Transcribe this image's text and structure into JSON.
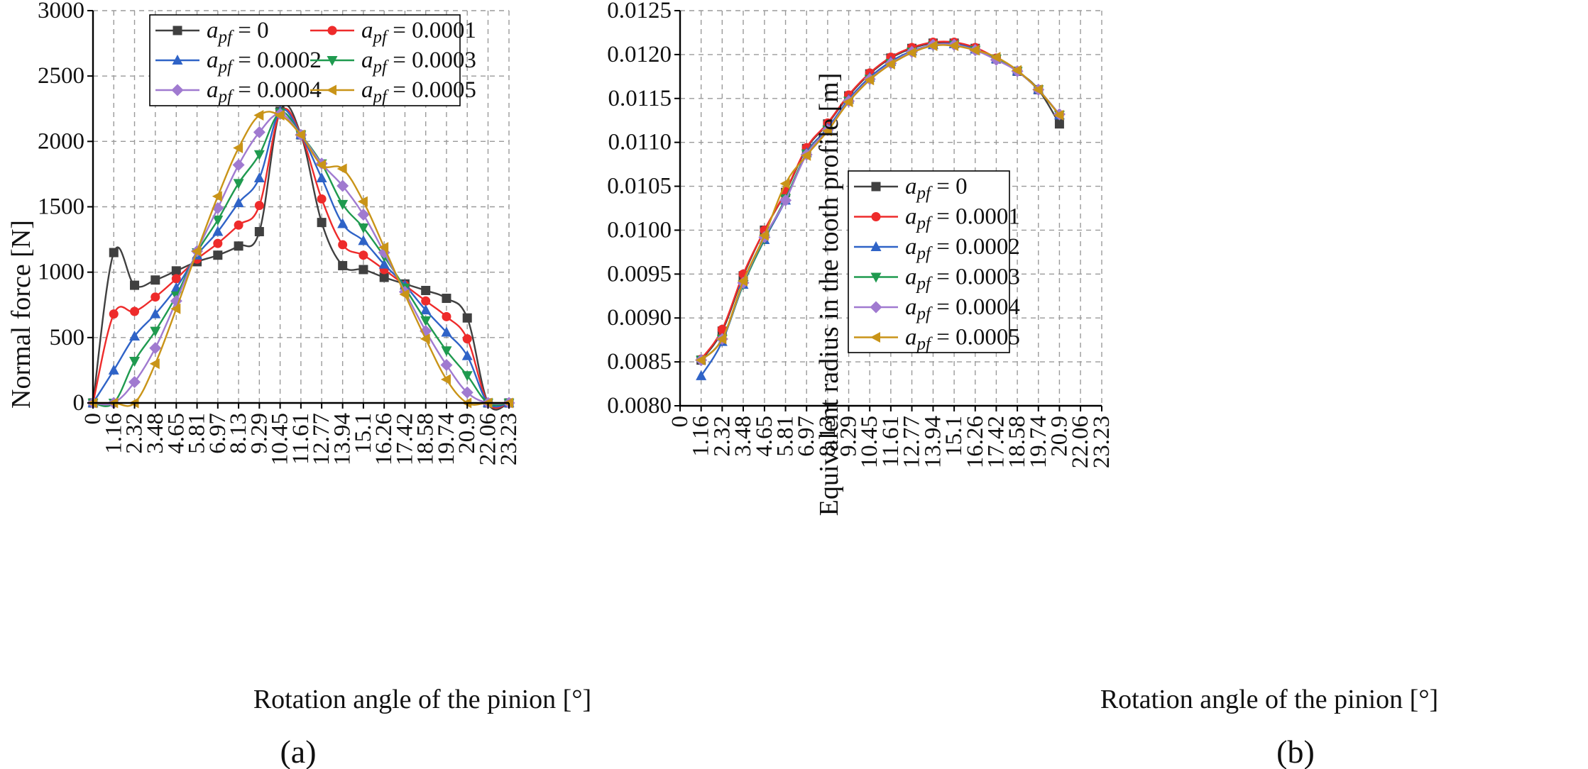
{
  "colors": {
    "apf_0": "#404040",
    "apf_0001": "#ee2b2b",
    "apf_0002": "#2f63c7",
    "apf_0003": "#1f9a4f",
    "apf_0004": "#a07ad0",
    "apf_0005": "#c99418"
  },
  "chart_data": [
    {
      "type": "line",
      "panel_label": "(a)",
      "xlabel": "Rotation angle of the pinion [°]",
      "ylabel": "Normal force [N]",
      "xlim": [
        0,
        23.23
      ],
      "ylim": [
        0,
        3000
      ],
      "x_ticks": [
        0,
        1.16,
        2.32,
        3.48,
        4.65,
        5.81,
        6.97,
        8.13,
        9.29,
        10.45,
        11.61,
        12.77,
        13.94,
        15.1,
        16.26,
        17.42,
        18.58,
        19.74,
        20.9,
        22.06,
        23.23
      ],
      "x_tick_labels": [
        "0",
        "1.16",
        "2.32",
        "3.48",
        "4.65",
        "5.81",
        "6.97",
        "8.13",
        "9.29",
        "10.45",
        "11.61",
        "12.77",
        "13.94",
        "15.1",
        "16.26",
        "17.42",
        "18.58",
        "19.74",
        "20.9",
        "22.06",
        "23.23"
      ],
      "y_ticks": [
        0,
        500,
        1000,
        1500,
        2000,
        2500,
        3000
      ],
      "y_tick_labels": [
        "0",
        "500",
        "1000",
        "1500",
        "2000",
        "2500",
        "3000"
      ],
      "legend_position": "top",
      "legend_columns": 2,
      "x": [
        0,
        1.16,
        2.32,
        3.48,
        4.65,
        5.81,
        6.97,
        8.13,
        9.29,
        10.45,
        11.61,
        12.77,
        13.94,
        15.1,
        16.26,
        17.42,
        18.58,
        19.74,
        20.9,
        22.06,
        23.23
      ],
      "series": [
        {
          "name_prefix": "a",
          "name_sub": "pf",
          "name_value": " = 0",
          "color_key": "apf_0",
          "marker": "square",
          "values": [
            0,
            1150,
            900,
            940,
            1010,
            1080,
            1130,
            1200,
            1310,
            2230,
            2050,
            1380,
            1050,
            1020,
            960,
            910,
            860,
            800,
            650,
            0,
            0
          ]
        },
        {
          "name_prefix": "a",
          "name_sub": "pf",
          "name_value": " = 0.0001",
          "color_key": "apf_0001",
          "marker": "circle",
          "values": [
            0,
            680,
            700,
            810,
            950,
            1100,
            1220,
            1360,
            1510,
            2220,
            2050,
            1560,
            1210,
            1130,
            1020,
            900,
            780,
            660,
            490,
            0,
            0
          ]
        },
        {
          "name_prefix": "a",
          "name_sub": "pf",
          "name_value": " = 0.0002",
          "color_key": "apf_0002",
          "marker": "triangle-up",
          "values": [
            0,
            250,
            510,
            680,
            880,
            1130,
            1310,
            1530,
            1720,
            2230,
            2050,
            1720,
            1370,
            1240,
            1060,
            900,
            710,
            540,
            360,
            0,
            0
          ]
        },
        {
          "name_prefix": "a",
          "name_sub": "pf",
          "name_value": " = 0.0003",
          "color_key": "apf_0003",
          "marker": "triangle-down",
          "values": [
            0,
            0,
            320,
            550,
            820,
            1150,
            1400,
            1680,
            1900,
            2220,
            2050,
            1830,
            1520,
            1340,
            1120,
            880,
            630,
            400,
            210,
            0,
            0
          ]
        },
        {
          "name_prefix": "a",
          "name_sub": "pf",
          "name_value": " = 0.0004",
          "color_key": "apf_0004",
          "marker": "diamond",
          "values": [
            0,
            0,
            160,
            420,
            780,
            1160,
            1490,
            1820,
            2070,
            2210,
            2050,
            1830,
            1660,
            1440,
            1150,
            850,
            550,
            290,
            80,
            0,
            0
          ]
        },
        {
          "name_prefix": "a",
          "name_sub": "pf",
          "name_value": " = 0.0005",
          "color_key": "apf_0005",
          "marker": "triangle-left",
          "values": [
            0,
            0,
            0,
            300,
            720,
            1160,
            1580,
            1950,
            2200,
            2200,
            2050,
            1820,
            1790,
            1540,
            1190,
            830,
            490,
            180,
            0,
            0,
            0
          ]
        }
      ]
    },
    {
      "type": "line",
      "panel_label": "(b)",
      "xlabel": "Rotation angle of the pinion [°]",
      "ylabel": "Equivalent radius in the tooth profile [m]",
      "xlim": [
        0,
        23.23
      ],
      "ylim": [
        0.008,
        0.0125
      ],
      "x_ticks": [
        0,
        1.16,
        2.32,
        3.48,
        4.65,
        5.81,
        6.97,
        8.13,
        9.29,
        10.45,
        11.61,
        12.77,
        13.94,
        15.1,
        16.26,
        17.42,
        18.58,
        19.74,
        20.9,
        22.06,
        23.23
      ],
      "x_tick_labels": [
        "0",
        "1.16",
        "2.32",
        "3.48",
        "4.65",
        "5.81",
        "6.97",
        "8.13",
        "9.29",
        "10.45",
        "11.61",
        "12.77",
        "13.94",
        "15.1",
        "16.26",
        "17.42",
        "18.58",
        "19.74",
        "20.9",
        "22.06",
        "23.23"
      ],
      "y_ticks": [
        0.008,
        0.0085,
        0.009,
        0.0095,
        0.01,
        0.0105,
        0.011,
        0.0115,
        0.012,
        0.0125
      ],
      "y_tick_labels": [
        "0.0080",
        "0.0085",
        "0.0090",
        "0.0095",
        "0.0100",
        "0.0105",
        "0.0110",
        "0.0115",
        "0.0120",
        "0.0125"
      ],
      "legend_position": "center-right",
      "legend_columns": 1,
      "x": [
        1.16,
        2.32,
        3.48,
        4.65,
        5.81,
        6.97,
        8.13,
        9.29,
        10.45,
        11.61,
        12.77,
        13.94,
        15.1,
        16.26,
        17.42,
        18.58,
        19.74,
        20.9
      ],
      "series": [
        {
          "name_prefix": "a",
          "name_sub": "pf",
          "name_value": " = 0",
          "color_key": "apf_0",
          "marker": "square",
          "values": [
            0.00852,
            0.00885,
            0.00948,
            0.01,
            0.01043,
            0.01093,
            0.01121,
            0.01153,
            0.01178,
            0.01196,
            0.01207,
            0.01213,
            0.01213,
            0.01207,
            0.01195,
            0.01181,
            0.0116,
            0.01121
          ]
        },
        {
          "name_prefix": "a",
          "name_sub": "pf",
          "name_value": " = 0.0001",
          "color_key": "apf_0001",
          "marker": "circle",
          "values": [
            0.00853,
            0.00887,
            0.0095,
            0.01,
            0.01044,
            0.01094,
            0.01122,
            0.01154,
            0.01179,
            0.01197,
            0.01208,
            0.01214,
            0.01214,
            0.01208,
            0.01196,
            0.01181,
            0.0116,
            0.01131
          ]
        },
        {
          "name_prefix": "a",
          "name_sub": "pf",
          "name_value": " = 0.0002",
          "color_key": "apf_0002",
          "marker": "triangle-up",
          "values": [
            0.00834,
            0.00873,
            0.00938,
            0.00989,
            0.01034,
            0.01088,
            0.01116,
            0.01149,
            0.01174,
            0.01192,
            0.01204,
            0.01211,
            0.01212,
            0.01206,
            0.01195,
            0.01181,
            0.0116,
            0.01131
          ]
        },
        {
          "name_prefix": "a",
          "name_sub": "pf",
          "name_value": " = 0.0003",
          "color_key": "apf_0003",
          "marker": "triangle-down",
          "values": [
            0.00852,
            0.00876,
            0.00938,
            0.0099,
            0.01036,
            0.01087,
            0.01114,
            0.01147,
            0.01172,
            0.0119,
            0.01203,
            0.0121,
            0.01211,
            0.01205,
            0.01195,
            0.01181,
            0.0116,
            0.01131
          ]
        },
        {
          "name_prefix": "a",
          "name_sub": "pf",
          "name_value": " = 0.0004",
          "color_key": "apf_0004",
          "marker": "diamond",
          "values": [
            0.00852,
            0.00876,
            0.0094,
            0.00992,
            0.01034,
            0.01086,
            0.01114,
            0.01147,
            0.01172,
            0.0119,
            0.01203,
            0.01211,
            0.01211,
            0.01205,
            0.01194,
            0.01181,
            0.0116,
            0.01132
          ]
        },
        {
          "name_prefix": "a",
          "name_sub": "pf",
          "name_value": " = 0.0005",
          "color_key": "apf_0005",
          "marker": "triangle-left",
          "values": [
            0.00852,
            0.00876,
            0.00942,
            0.00994,
            0.01053,
            0.01085,
            0.01113,
            0.01146,
            0.01171,
            0.01189,
            0.01202,
            0.0121,
            0.0121,
            0.01205,
            0.01197,
            0.01182,
            0.0116,
            0.01131
          ]
        }
      ]
    }
  ]
}
